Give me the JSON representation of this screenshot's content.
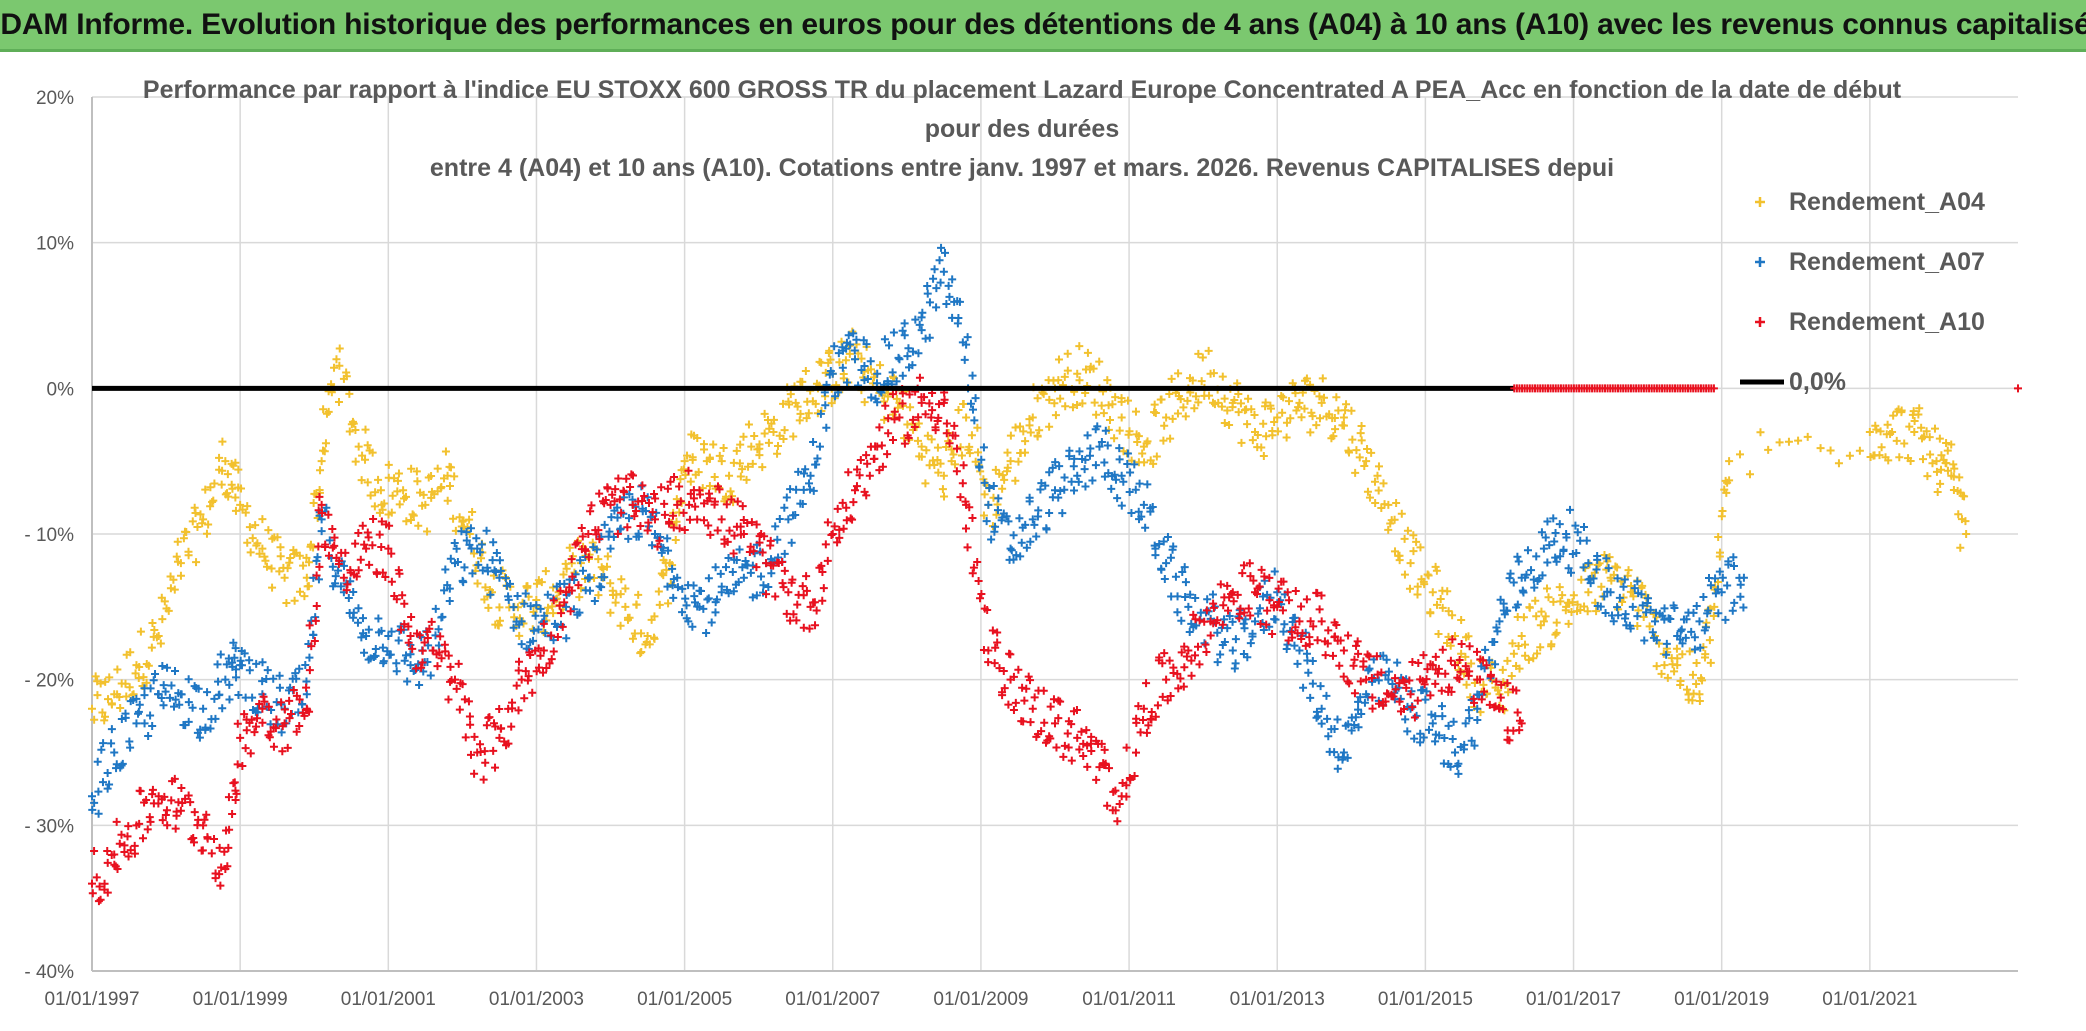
{
  "banner": {
    "text": "ADAM Informe. Evolution historique des performances en euros pour des détentions de 4 ans (A04) à 10 ans (A10) avec les revenus connus capitalisés"
  },
  "chart_data": {
    "type": "scatter",
    "title_lines": [
      "Performance par rapport à l'indice EU STOXX 600 GROSS TR  du placement Lazard Europe Concentrated A PEA_Acc en fonction de la date de début",
      "pour des durées",
      "entre 4 (A04) et 10 ans (A10). Cotations entre janv. 1997 et mars. 2026. Revenus CAPITALISES depui"
    ],
    "xlabel": "",
    "ylabel": "",
    "x_range": [
      1997.0,
      2023.0
    ],
    "x_ticks": [
      {
        "value": 1997,
        "label": "01/01/1997"
      },
      {
        "value": 1999,
        "label": "01/01/1999"
      },
      {
        "value": 2001,
        "label": "01/01/2001"
      },
      {
        "value": 2003,
        "label": "01/01/2003"
      },
      {
        "value": 2005,
        "label": "01/01/2005"
      },
      {
        "value": 2007,
        "label": "01/01/2007"
      },
      {
        "value": 2009,
        "label": "01/01/2009"
      },
      {
        "value": 2011,
        "label": "01/01/2011"
      },
      {
        "value": 2013,
        "label": "01/01/2013"
      },
      {
        "value": 2015,
        "label": "01/01/2015"
      },
      {
        "value": 2017,
        "label": "01/01/2017"
      },
      {
        "value": 2019,
        "label": "01/01/2019"
      },
      {
        "value": 2021,
        "label": "01/01/2021"
      }
    ],
    "ylim": [
      -40,
      20
    ],
    "y_ticks": [
      {
        "value": 20,
        "label": "20%"
      },
      {
        "value": 10,
        "label": "10%"
      },
      {
        "value": 0,
        "label": "0%"
      },
      {
        "value": -10,
        "label": "- 10%"
      },
      {
        "value": -20,
        "label": "- 20%"
      },
      {
        "value": -30,
        "label": "- 30%"
      },
      {
        "value": -40,
        "label": "- 40%"
      }
    ],
    "grid": true,
    "legend_position": "right",
    "series": [
      {
        "name": "Rendement_A04",
        "color": "#f2c12e",
        "marker": "plus",
        "x": [
          1997.0,
          1997.3,
          1997.6,
          1997.9,
          1998.2,
          1998.5,
          1998.8,
          1999.0,
          1999.3,
          1999.6,
          1999.9,
          2000.1,
          2000.3,
          2000.6,
          2000.9,
          2001.2,
          2001.5,
          2001.8,
          2002.1,
          2002.4,
          2002.7,
          2003.0,
          2003.3,
          2003.6,
          2003.9,
          2004.2,
          2004.5,
          2004.8,
          2005.0,
          2005.3,
          2005.6,
          2005.9,
          2006.2,
          2006.5,
          2006.8,
          2007.0,
          2007.3,
          2007.6,
          2007.9,
          2008.2,
          2008.5,
          2008.8,
          2009.1,
          2009.4,
          2009.7,
          2010.0,
          2010.3,
          2010.6,
          2010.9,
          2011.2,
          2011.5,
          2011.8,
          2012.1,
          2012.4,
          2012.7,
          2013.0,
          2013.3,
          2013.6,
          2013.9,
          2014.2,
          2014.5,
          2014.8,
          2015.1,
          2015.4,
          2015.7,
          2016.0,
          2016.3,
          2016.6,
          2016.9,
          2017.2,
          2017.5,
          2017.8,
          2018.1,
          2018.4,
          2018.7,
          2018.9,
          2019.1,
          2021.0,
          2021.3,
          2021.6,
          2021.9,
          2022.1,
          2022.3
        ],
        "y": [
          -22,
          -21,
          -19,
          -17,
          -12,
          -9,
          -5,
          -8,
          -11,
          -13,
          -13,
          -5,
          2,
          -4,
          -7,
          -7,
          -8,
          -6,
          -10,
          -14,
          -15,
          -15,
          -14,
          -12,
          -13,
          -15,
          -17,
          -12,
          -5,
          -5,
          -6,
          -4,
          -3,
          -1,
          0,
          1,
          2,
          0,
          -1,
          -4,
          -6,
          -2,
          -8,
          -5,
          -2,
          0,
          1,
          0,
          -2,
          -4,
          -2,
          0,
          1,
          -1,
          -3,
          -2,
          -1,
          -1,
          -2,
          -5,
          -8,
          -12,
          -14,
          -17,
          -20,
          -21,
          -17,
          -16,
          -15,
          -14,
          -13,
          -14,
          -17,
          -19,
          -21,
          -15,
          -5,
          -3,
          -3,
          -3,
          -5,
          -6,
          -10
        ]
      },
      {
        "name": "Rendement_A07",
        "color": "#1f77c4",
        "marker": "plus",
        "x": [
          1997.0,
          1997.3,
          1997.6,
          1997.9,
          1998.2,
          1998.5,
          1998.8,
          1999.0,
          1999.3,
          1999.6,
          1999.9,
          2000.1,
          2000.4,
          2000.7,
          2001.0,
          2001.3,
          2001.6,
          2001.9,
          2002.2,
          2002.5,
          2002.8,
          2003.1,
          2003.4,
          2003.7,
          2004.0,
          2004.3,
          2004.6,
          2004.9,
          2005.2,
          2005.5,
          2005.8,
          2006.1,
          2006.4,
          2006.7,
          2007.0,
          2007.3,
          2007.6,
          2007.9,
          2008.2,
          2008.5,
          2008.8,
          2009.1,
          2009.4,
          2009.7,
          2010.0,
          2010.3,
          2010.6,
          2010.9,
          2011.2,
          2011.5,
          2011.8,
          2012.1,
          2012.4,
          2012.7,
          2013.0,
          2013.3,
          2013.6,
          2013.9,
          2014.2,
          2014.5,
          2014.8,
          2015.1,
          2015.4,
          2015.7,
          2016.0,
          2016.3,
          2016.6,
          2016.9,
          2017.2,
          2017.5,
          2017.8,
          2018.1,
          2018.4,
          2018.7,
          2019.0,
          2019.3
        ],
        "y": [
          -28,
          -25,
          -23,
          -21,
          -21,
          -22,
          -20,
          -19,
          -21,
          -22,
          -21,
          -9,
          -14,
          -17,
          -17,
          -19,
          -18,
          -12,
          -11,
          -13,
          -16,
          -16,
          -15,
          -13,
          -11,
          -8,
          -10,
          -13,
          -15,
          -14,
          -13,
          -12,
          -9,
          -6,
          1,
          2,
          1,
          2,
          4,
          8,
          3,
          -8,
          -11,
          -9,
          -7,
          -6,
          -4,
          -6,
          -8,
          -12,
          -15,
          -16,
          -18,
          -16,
          -14,
          -18,
          -22,
          -25,
          -21,
          -20,
          -22,
          -23,
          -25,
          -22,
          -16,
          -13,
          -11,
          -10,
          -12,
          -14,
          -15,
          -16,
          -17,
          -16,
          -14,
          -13
        ]
      },
      {
        "name": "Rendement_A10",
        "color": "#e8111f",
        "marker": "plus",
        "x": [
          1997.0,
          1997.3,
          1997.6,
          1997.9,
          1998.2,
          1998.5,
          1998.8,
          1999.0,
          1999.3,
          1999.6,
          1999.9,
          2000.1,
          2000.4,
          2000.7,
          2001.0,
          2001.3,
          2001.6,
          2001.9,
          2002.2,
          2002.5,
          2002.8,
          2003.1,
          2003.4,
          2003.7,
          2004.0,
          2004.3,
          2004.6,
          2004.9,
          2005.2,
          2005.5,
          2005.8,
          2006.1,
          2006.4,
          2006.7,
          2007.0,
          2007.3,
          2007.6,
          2007.9,
          2008.2,
          2008.5,
          2008.8,
          2009.1,
          2009.4,
          2009.7,
          2010.0,
          2010.3,
          2010.6,
          2010.9,
          2011.2,
          2011.5,
          2011.8,
          2012.1,
          2012.4,
          2012.7,
          2013.0,
          2013.3,
          2013.6,
          2013.9,
          2014.2,
          2014.5,
          2014.8,
          2015.1,
          2015.4,
          2015.7,
          2016.0,
          2016.3
        ],
        "y": [
          -34,
          -32,
          -30,
          -28,
          -29,
          -30,
          -33,
          -24,
          -22,
          -23,
          -22,
          -8,
          -13,
          -11,
          -11,
          -17,
          -18,
          -20,
          -25,
          -24,
          -20,
          -18,
          -14,
          -10,
          -8,
          -8,
          -9,
          -8,
          -7,
          -9,
          -10,
          -12,
          -14,
          -15,
          -10,
          -7,
          -4,
          -2,
          -1,
          -1,
          -8,
          -18,
          -20,
          -22,
          -23,
          -24,
          -26,
          -28,
          -22,
          -20,
          -18,
          -16,
          -14,
          -14,
          -15,
          -16,
          -16,
          -18,
          -20,
          -21,
          -21,
          -19,
          -19,
          -20,
          -22,
          -23
        ]
      },
      {
        "name": "0,0%",
        "color": "#000000",
        "marker": "line",
        "x": [
          1997.0,
          2016.2
        ],
        "y": [
          0,
          0
        ]
      }
    ],
    "zero_extension": {
      "color": "#e8111f",
      "x_start": 2016.2,
      "x_end": 2018.9,
      "y": 0
    }
  }
}
